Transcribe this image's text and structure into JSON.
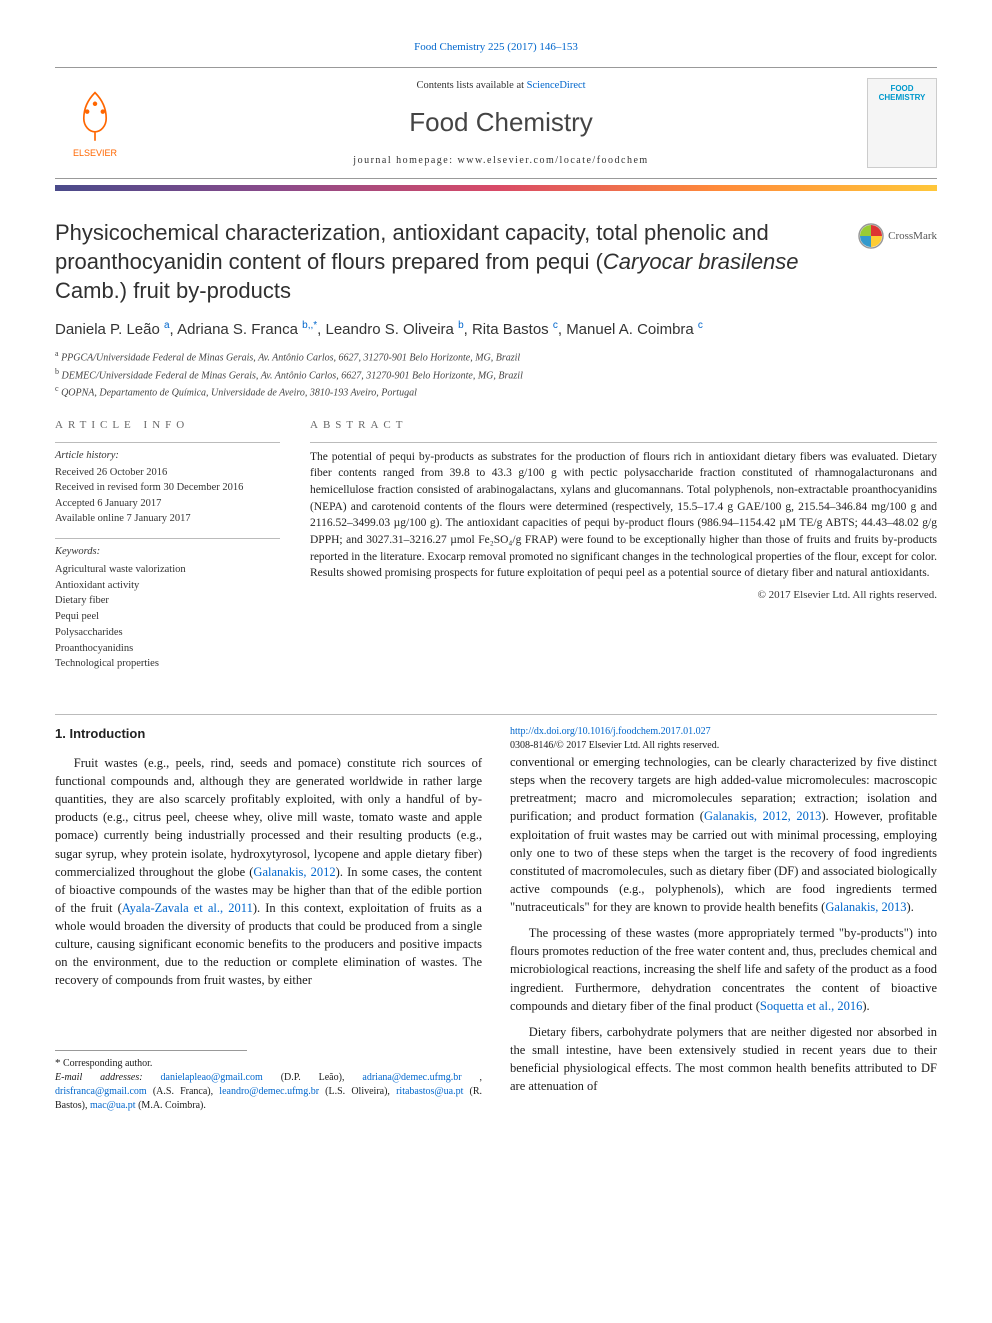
{
  "citation": "Food Chemistry 225 (2017) 146–153",
  "masthead": {
    "contents_prefix": "Contents lists available at ",
    "contents_link": "ScienceDirect",
    "journal": "Food Chemistry",
    "homepage_label": "journal homepage: ",
    "homepage_url": "www.elsevier.com/locate/foodchem",
    "publisher": "ELSEVIER",
    "cover_text": "FOOD CHEMISTRY"
  },
  "crossmark": "CrossMark",
  "title_pre": "Physicochemical characterization, antioxidant capacity, total phenolic and proanthocyanidin content of flours prepared from pequi (",
  "title_ital": "Caryocar brasilense",
  "title_post": " Camb.) fruit by-products",
  "authors": [
    {
      "name": "Daniela P. Leão",
      "sup": "a"
    },
    {
      "name": "Adriana S. Franca",
      "sup": "b,*"
    },
    {
      "name": "Leandro S. Oliveira",
      "sup": "b"
    },
    {
      "name": "Rita Bastos",
      "sup": "c"
    },
    {
      "name": "Manuel A. Coimbra",
      "sup": "c"
    }
  ],
  "affiliations": [
    {
      "sup": "a",
      "text": "PPGCA/Universidade Federal de Minas Gerais, Av. Antônio Carlos, 6627, 31270-901 Belo Horizonte, MG, Brazil"
    },
    {
      "sup": "b",
      "text": "DEMEC/Universidade Federal de Minas Gerais, Av. Antônio Carlos, 6627, 31270-901 Belo Horizonte, MG, Brazil"
    },
    {
      "sup": "c",
      "text": "QOPNA, Departamento de Química, Universidade de Aveiro, 3810-193 Aveiro, Portugal"
    }
  ],
  "info_label": "ARTICLE INFO",
  "abstract_label": "ABSTRACT",
  "history_heading": "Article history:",
  "history": [
    "Received 26 October 2016",
    "Received in revised form 30 December 2016",
    "Accepted 6 January 2017",
    "Available online 7 January 2017"
  ],
  "keywords_heading": "Keywords:",
  "keywords": [
    "Agricultural waste valorization",
    "Antioxidant activity",
    "Dietary fiber",
    "Pequi peel",
    "Polysaccharides",
    "Proanthocyanidins",
    "Technological properties"
  ],
  "abstract": "The potential of pequi by-products as substrates for the production of flours rich in antioxidant dietary fibers was evaluated. Dietary fiber contents ranged from 39.8 to 43.3 g/100 g with pectic polysaccharide fraction constituted of rhamnogalacturonans and hemicellulose fraction consisted of arabinogalactans, xylans and glucomannans. Total polyphenols, non-extractable proanthocyanidins (NEPA) and carotenoid contents of the flours were determined (respectively, 15.5–17.4 g GAE/100 g, 215.54–346.84 mg/100 g and 2116.52–3499.03 µg/100 g). The antioxidant capacities of pequi by-product flours (986.94–1154.42 µM TE/g ABTS; 44.43–48.02 g/g DPPH; and 3027.31–3216.27 µmol Fe₂SO₄/g FRAP) were found to be exceptionally higher than those of fruits and fruits by-products reported in the literature. Exocarp removal promoted no significant changes in the technological properties of the flour, except for color. Results showed promising prospects for future exploitation of pequi peel as a potential source of dietary fiber and natural antioxidants.",
  "copyright": "© 2017 Elsevier Ltd. All rights reserved.",
  "section1_heading": "1. Introduction",
  "para1_a": "Fruit wastes (e.g., peels, rind, seeds and pomace) constitute rich sources of functional compounds and, although they are generated worldwide in rather large quantities, they are also scarcely profitably exploited, with only a handful of by-products (e.g., citrus peel, cheese whey, olive mill waste, tomato waste and apple pomace) currently being industrially processed and their resulting products (e.g., sugar syrup, whey protein isolate, hydroxytyrosol, lycopene and apple dietary fiber) commercialized throughout the globe (",
  "para1_link1": "Galanakis, 2012",
  "para1_b": "). In some cases, the content of bioactive compounds of the wastes may be higher than that of the edible portion of the fruit (",
  "para1_link2": "Ayala-Zavala et al., 2011",
  "para1_c": "). In this context, exploitation of fruits as a whole would broaden the diversity of products that could be produced from a single culture, causing significant economic benefits to the producers and positive impacts on the environment, due to the reduction or complete elimination of wastes. The recovery of compounds from fruit wastes, by either",
  "para2_a": "conventional or emerging technologies, can be clearly characterized by five distinct steps when the recovery targets are high added-value micromolecules: macroscopic pretreatment; macro and micromolecules separation; extraction; isolation and purification; and product formation (",
  "para2_link1": "Galanakis, 2012, 2013",
  "para2_b": "). However, profitable exploitation of fruit wastes may be carried out with minimal processing, employing only one to two of these steps when the target is the recovery of food ingredients constituted of macromolecules, such as dietary fiber (DF) and associated biologically active compounds (e.g., polyphenols), which are food ingredients termed \"nutraceuticals\" for they are known to provide health benefits (",
  "para2_link2": "Galanakis, 2013",
  "para2_c": ").",
  "para3_a": "The processing of these wastes (more appropriately termed \"by-products\") into flours promotes reduction of the free water content and, thus, precludes chemical and microbiological reactions, increasing the shelf life and safety of the product as a food ingredient. Furthermore, dehydration concentrates the content of bioactive compounds and dietary fiber of the final product (",
  "para3_link1": "Soquetta et al., 2016",
  "para3_b": ").",
  "para4": "Dietary fibers, carbohydrate polymers that are neither digested nor absorbed in the small intestine, have been extensively studied in recent years due to their beneficial physiological effects. The most common health benefits attributed to DF are attenuation of",
  "corr_label": "Corresponding author.",
  "email_label": "E-mail addresses:",
  "emails": [
    {
      "addr": "danielapleao@gmail.com",
      "who": "(D.P. Leão)"
    },
    {
      "addr": "adriana@demec.ufmg.br",
      "who": ""
    },
    {
      "addr": "drisfranca@gmail.com",
      "who": "(A.S. Franca)"
    },
    {
      "addr": "leandro@demec.ufmg.br",
      "who": "(L.S. Oliveira)"
    },
    {
      "addr": "ritabastos@ua.pt",
      "who": "(R. Bastos)"
    },
    {
      "addr": "mac@ua.pt",
      "who": "(M.A. Coimbra)"
    }
  ],
  "doi": "http://dx.doi.org/10.1016/j.foodchem.2017.01.027",
  "issn_line": "0308-8146/© 2017 Elsevier Ltd. All rights reserved.",
  "colors": {
    "link": "#0066cc",
    "publisher": "#ff6600",
    "text": "#1a1a1a",
    "rule": "#bbbbbb"
  }
}
